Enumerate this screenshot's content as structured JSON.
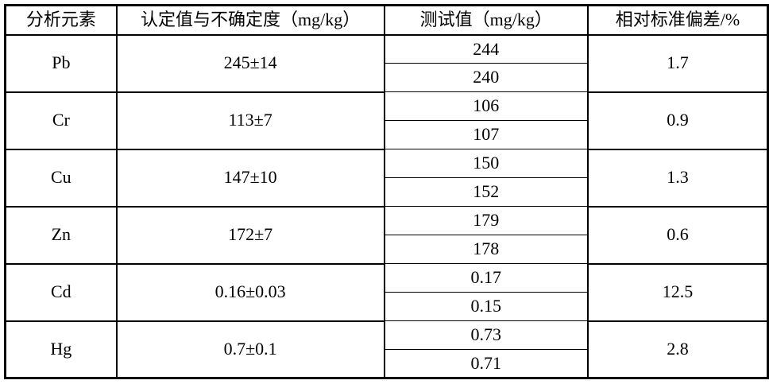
{
  "table": {
    "headers": [
      "分析元素",
      "认定值与不确定度（mg/kg）",
      "测试值（mg/kg）",
      "相对标准偏差/%"
    ],
    "rows": [
      {
        "element": "Pb",
        "certified": "245±14",
        "measured": [
          "244",
          "240"
        ],
        "rsd": "1.7"
      },
      {
        "element": "Cr",
        "certified": "113±7",
        "measured": [
          "106",
          "107"
        ],
        "rsd": "0.9"
      },
      {
        "element": "Cu",
        "certified": "147±10",
        "measured": [
          "150",
          "152"
        ],
        "rsd": "1.3"
      },
      {
        "element": "Zn",
        "certified": "172±7",
        "measured": [
          "179",
          "178"
        ],
        "rsd": "0.6"
      },
      {
        "element": "Cd",
        "certified": "0.16±0.03",
        "measured": [
          "0.17",
          "0.15"
        ],
        "rsd": "12.5"
      },
      {
        "element": "Hg",
        "certified": "0.7±0.1",
        "measured": [
          "0.73",
          "0.71"
        ],
        "rsd": "2.8"
      }
    ],
    "colors": {
      "border": "#000000",
      "text": "#000000",
      "background": "#ffffff"
    }
  }
}
